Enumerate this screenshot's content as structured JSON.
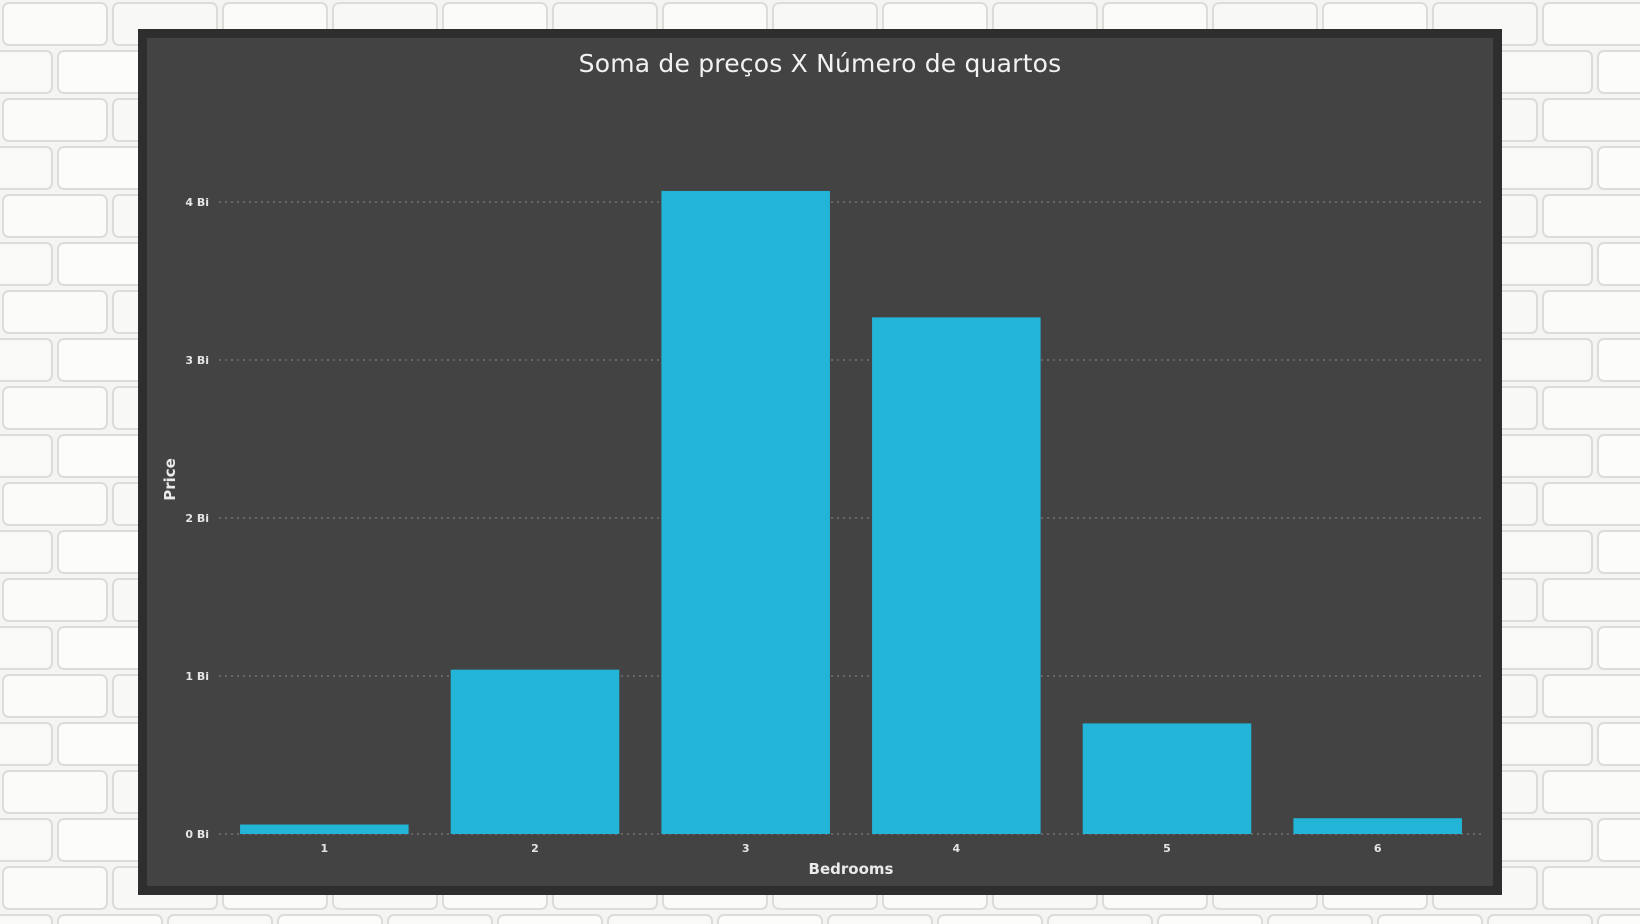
{
  "colors": {
    "panel_background": "#434343",
    "panel_border": "#2e2e2e",
    "bar": "#22b5d8",
    "gridline": "#7a7a7a",
    "text": "#eaeaea"
  },
  "chart_data": {
    "type": "bar",
    "title": "Soma de preços X Número de quartos",
    "xlabel": "Bedrooms",
    "ylabel": "Price",
    "categories": [
      "1",
      "2",
      "3",
      "4",
      "5",
      "6"
    ],
    "values": [
      0.06,
      1.04,
      4.07,
      3.27,
      0.7,
      0.1
    ],
    "unit": "Bi",
    "ylim": [
      0,
      4
    ],
    "yticks": [
      0,
      1,
      2,
      3,
      4
    ],
    "ytick_labels": [
      "0 Bi",
      "1 Bi",
      "2 Bi",
      "3 Bi",
      "4 Bi"
    ],
    "grid": "horizontal-dotted",
    "legend": "none"
  }
}
